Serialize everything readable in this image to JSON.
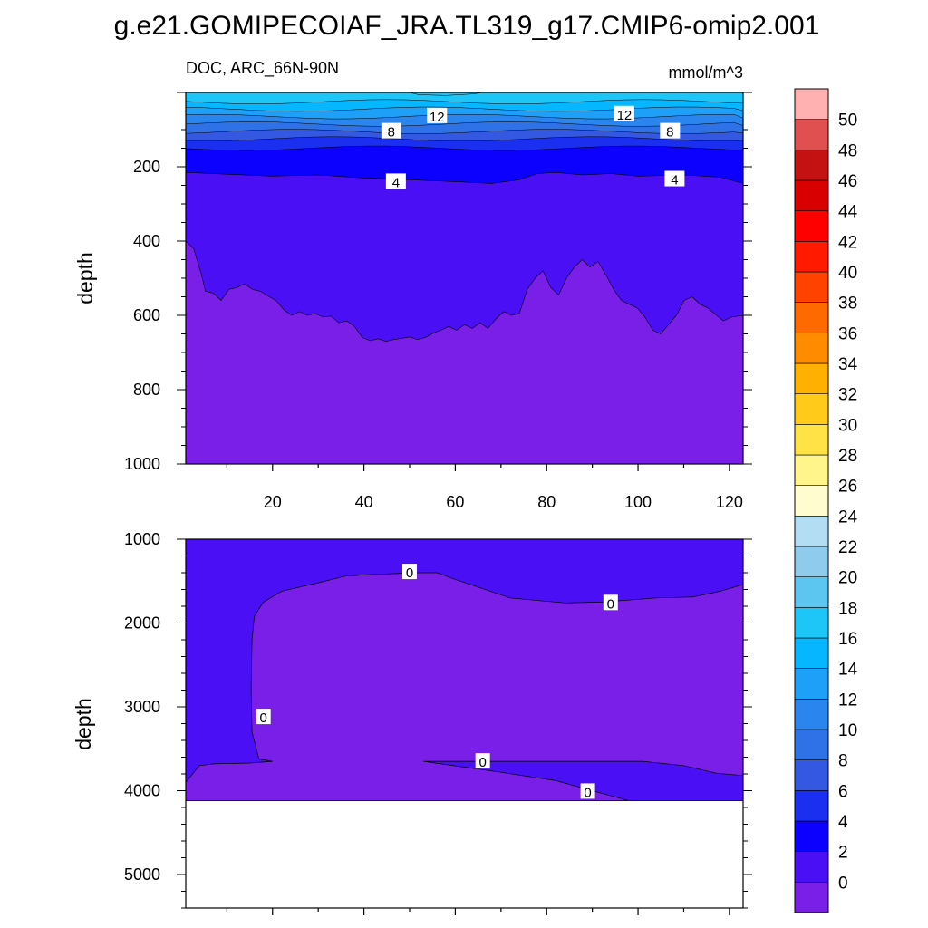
{
  "chart_data": {
    "type": "contour",
    "title": "g.e21.GOMIPECOIAF_JRA.TL319_g17.CMIP6-omip2.001",
    "subtitle_left": "DOC, ARC_66N-90N",
    "subtitle_right": "mmol/m^3",
    "ylabel": "depth",
    "x_range": [
      1,
      123
    ],
    "x_ticks": [
      "20",
      "40",
      "60",
      "80",
      "100",
      "120"
    ],
    "upper_panel": {
      "ylim": [
        0,
        1000
      ],
      "y_ticks": [
        "200",
        "400",
        "600",
        "800",
        "1000"
      ],
      "contour_labels": [
        "12",
        "12",
        "8",
        "8",
        "4",
        "4"
      ]
    },
    "lower_panel": {
      "ylim": [
        1000,
        5400
      ],
      "y_ticks": [
        "1000",
        "2000",
        "3000",
        "4000",
        "5000"
      ],
      "seafloor_depth": 4120,
      "contour_labels": [
        "0",
        "0",
        "0",
        "0",
        "0"
      ]
    },
    "colorbar": {
      "levels": [
        "0",
        "2",
        "4",
        "6",
        "8",
        "10",
        "12",
        "14",
        "16",
        "18",
        "20",
        "22",
        "24",
        "26",
        "28",
        "30",
        "32",
        "34",
        "36",
        "38",
        "40",
        "42",
        "44",
        "46",
        "48",
        "50"
      ],
      "colors": [
        "#7a1fe8",
        "#4b0ff5",
        "#0c00ff",
        "#1a2ff0",
        "#3558e2",
        "#2f72e8",
        "#2a86ee",
        "#1ea0f8",
        "#06b6ff",
        "#1ec6f8",
        "#5cc6f0",
        "#8ecbed",
        "#b3ddf2",
        "#fffdd0",
        "#fff58a",
        "#ffe246",
        "#ffca1a",
        "#ffb000",
        "#ff8c00",
        "#ff6a00",
        "#ff4200",
        "#ff1a00",
        "#ff0000",
        "#d80000",
        "#c41111",
        "#e05050",
        "#ffb0b0"
      ]
    }
  }
}
